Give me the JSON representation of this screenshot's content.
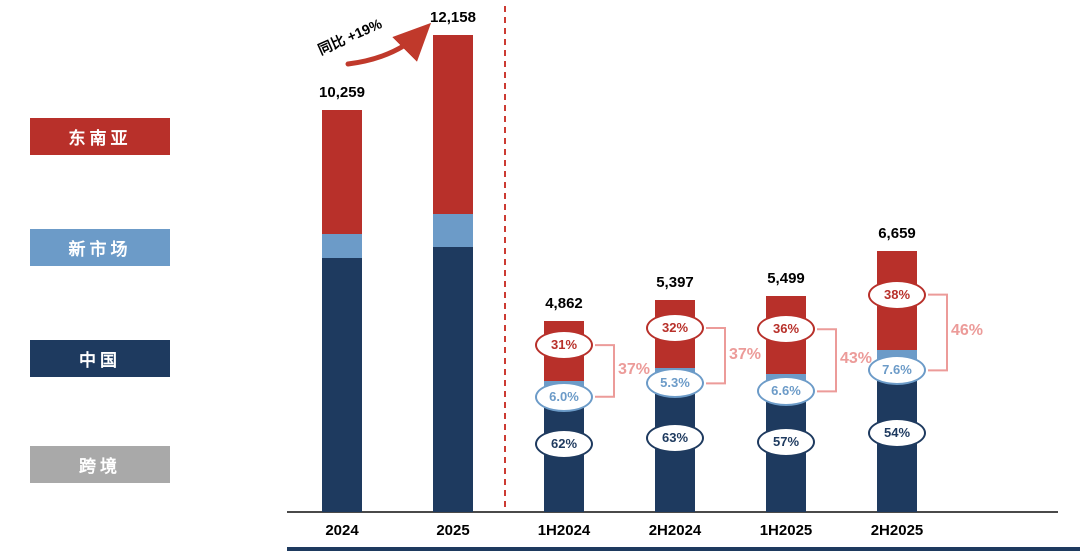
{
  "legend": {
    "items": [
      {
        "label": "东南亚",
        "color": "#B8302A"
      },
      {
        "label": "新市场",
        "color": "#6C9BC8"
      },
      {
        "label": "中国",
        "color": "#1E3A5F"
      },
      {
        "label": "跨境",
        "color": "#A9A9A9"
      }
    ]
  },
  "chart_data": {
    "type": "bar",
    "stacked": true,
    "title": "",
    "legend_position": "left",
    "yoy_annotation": "同比 +19%",
    "series_bottom_to_top": [
      "中国",
      "新市场",
      "东南亚"
    ],
    "colors": {
      "东南亚": "#B8302A",
      "新市场": "#6C9BC8",
      "中国": "#1E3A5F",
      "跨境": "#A9A9A9",
      "growth_label": "#EC9B99",
      "separator": "#CC3B33",
      "arrow": "#C0392B"
    },
    "x_axis": [
      "2024",
      "2025",
      "1H2024",
      "2H2024",
      "1H2025",
      "2H2025"
    ],
    "bars": [
      {
        "category": "2024",
        "total": 10259,
        "total_label": "10,259",
        "segments_pct": {
          "中国": 63,
          "新市场": 6,
          "东南亚": 31
        }
      },
      {
        "category": "2025",
        "total": 12158,
        "total_label": "12,158",
        "segments_pct": {
          "中国": 55.5,
          "新市场": 7,
          "东南亚": 37.5
        }
      },
      {
        "category": "1H2024",
        "total": 4862,
        "total_label": "4,862",
        "segments_pct": {
          "中国": 62,
          "新市场": 6.0,
          "东南亚": 31
        },
        "segment_labels": {
          "中国": "62%",
          "新市场": "6.0%",
          "东南亚": "31%"
        },
        "overseas_share_label": "37%"
      },
      {
        "category": "2H2024",
        "total": 5397,
        "total_label": "5,397",
        "segments_pct": {
          "中国": 63,
          "新市场": 5.3,
          "东南亚": 32
        },
        "segment_labels": {
          "中国": "63%",
          "新市场": "5.3%",
          "东南亚": "32%"
        },
        "overseas_share_label": "37%"
      },
      {
        "category": "1H2025",
        "total": 5499,
        "total_label": "5,499",
        "segments_pct": {
          "中国": 57,
          "新市场": 6.6,
          "东南亚": 36
        },
        "segment_labels": {
          "中国": "57%",
          "新市场": "6.6%",
          "东南亚": "36%"
        },
        "overseas_share_label": "43%"
      },
      {
        "category": "2H2025",
        "total": 6659,
        "total_label": "6,659",
        "segments_pct": {
          "中国": 54,
          "新市场": 7.6,
          "东南亚": 38
        },
        "segment_labels": {
          "中国": "54%",
          "新市场": "7.6%",
          "东南亚": "38%"
        },
        "overseas_share_label": "46%"
      }
    ]
  }
}
